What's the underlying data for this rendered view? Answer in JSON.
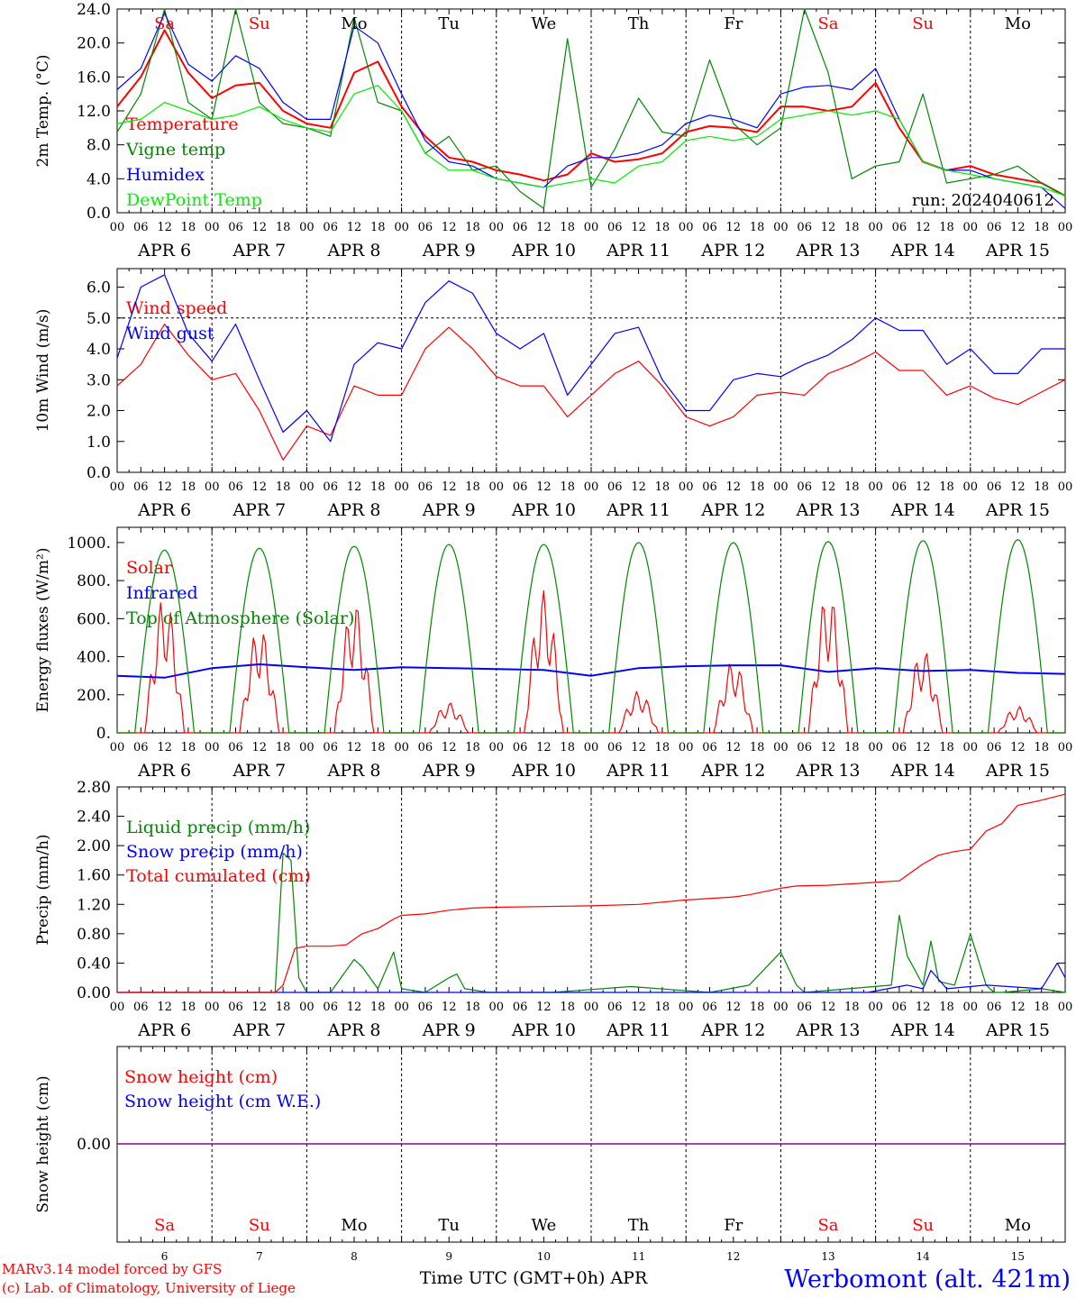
{
  "footer": {
    "model_line": "MARv3.14 model forced by GFS",
    "credit_line": "(c) Lab. of Climatology, University of Liege",
    "xaxis_title": "Time UTC (GMT+0h) APR",
    "station": "Werbomont (alt. 421m)"
  },
  "colors": {
    "red": "#ff0000",
    "green": "#008800",
    "blue": "#0000ff",
    "lightgreen": "#00ee00",
    "purple": "#800080",
    "weekend": "#ff0000",
    "weekday": "#000000"
  },
  "time_axis": {
    "hour_ticks": [
      "00",
      "06",
      "12",
      "18"
    ],
    "day_labels": [
      "APR  6",
      "APR  7",
      "APR  8",
      "APR  9",
      "APR 10",
      "APR 11",
      "APR 12",
      "APR 13",
      "APR 14",
      "APR 15"
    ],
    "weekdays": [
      "Sa",
      "Su",
      "Mo",
      "Tu",
      "We",
      "Th",
      "Fr",
      "Sa",
      "Su",
      "Mo"
    ],
    "weekend_flags": [
      true,
      true,
      false,
      false,
      false,
      false,
      false,
      true,
      true,
      false
    ],
    "bottom_day_numbers": [
      "6",
      "7",
      "8",
      "9",
      "10",
      "11",
      "12",
      "13",
      "14",
      "15"
    ]
  },
  "chart_data": [
    {
      "type": "line",
      "ylabel": "2m Temp. (°C)",
      "ylim": [
        0,
        24
      ],
      "yticks": [
        "0.0",
        "4.0",
        "8.0",
        "12.0",
        "16.0",
        "20.0",
        "24.0"
      ],
      "annotation": "run: 2024040612",
      "x_unit": "hours since APR 6 00 UTC",
      "series": [
        {
          "name": "Temperature",
          "color": "#ff0000",
          "x": [
            0,
            6,
            12,
            18,
            24,
            30,
            36,
            42,
            48,
            54,
            60,
            66,
            72,
            78,
            84,
            90,
            96,
            102,
            108,
            114,
            120,
            126,
            132,
            138,
            144,
            150,
            156,
            162,
            168,
            174,
            180,
            186,
            192,
            198,
            204,
            210,
            216,
            222,
            228,
            234,
            240
          ],
          "values": [
            12.5,
            16.0,
            21.5,
            16.5,
            13.5,
            15.0,
            15.3,
            12.0,
            10.5,
            10.0,
            16.5,
            17.8,
            12.5,
            9.0,
            6.5,
            6.0,
            5.0,
            4.5,
            3.8,
            4.5,
            7.0,
            6.0,
            6.3,
            7.0,
            9.5,
            10.2,
            10.0,
            9.5,
            12.5,
            12.5,
            12.0,
            12.5,
            15.3,
            10.0,
            6.0,
            5.0,
            5.5,
            4.5,
            4.0,
            3.5,
            2.0
          ]
        },
        {
          "name": "Vigne temp",
          "color": "#008800",
          "x": [
            0,
            6,
            12,
            18,
            24,
            30,
            36,
            42,
            48,
            54,
            60,
            66,
            72,
            78,
            84,
            90,
            96,
            102,
            108,
            114,
            120,
            126,
            132,
            138,
            144,
            150,
            156,
            162,
            168,
            174,
            180,
            186,
            192,
            198,
            204,
            210,
            216,
            222,
            228,
            234,
            240
          ],
          "values": [
            9.5,
            14.0,
            24.0,
            13.0,
            11.0,
            24.0,
            13.0,
            10.5,
            10.0,
            9.0,
            23.0,
            13.0,
            12.0,
            7.0,
            9.0,
            5.0,
            5.5,
            2.5,
            0.5,
            20.5,
            3.0,
            7.5,
            13.5,
            9.5,
            9.0,
            18.0,
            10.5,
            8.0,
            10.0,
            24.0,
            16.5,
            4.0,
            5.5,
            6.0,
            14.0,
            3.5,
            4.0,
            4.5,
            5.5,
            3.5,
            2.0
          ]
        },
        {
          "name": "Humidex",
          "color": "#0000ff",
          "x": [
            0,
            6,
            12,
            18,
            24,
            30,
            36,
            42,
            48,
            54,
            60,
            66,
            72,
            78,
            84,
            90,
            96,
            102,
            108,
            114,
            120,
            126,
            132,
            138,
            144,
            150,
            156,
            162,
            168,
            174,
            180,
            186,
            192,
            198,
            204,
            210,
            216,
            222,
            228,
            234,
            240
          ],
          "values": [
            14.5,
            17.0,
            23.5,
            17.5,
            15.5,
            18.5,
            17.0,
            13.0,
            11.0,
            11.0,
            22.0,
            20.0,
            14.0,
            8.5,
            6.0,
            5.5,
            4.0,
            3.5,
            3.0,
            5.5,
            6.5,
            6.5,
            7.0,
            8.0,
            10.5,
            11.5,
            11.0,
            10.0,
            14.0,
            14.8,
            15.0,
            14.5,
            17.0,
            11.0,
            6.0,
            5.0,
            5.0,
            4.0,
            3.5,
            3.0,
            0.5
          ]
        },
        {
          "name": "DewPoint Temp",
          "color": "#00ee00",
          "x": [
            0,
            6,
            12,
            18,
            24,
            30,
            36,
            42,
            48,
            54,
            60,
            66,
            72,
            78,
            84,
            90,
            96,
            102,
            108,
            114,
            120,
            126,
            132,
            138,
            144,
            150,
            156,
            162,
            168,
            174,
            180,
            186,
            192,
            198,
            204,
            210,
            216,
            222,
            228,
            234,
            240
          ],
          "values": [
            10.5,
            11.0,
            13.0,
            12.0,
            11.0,
            11.5,
            12.5,
            11.0,
            10.0,
            9.5,
            14.0,
            15.0,
            12.0,
            7.0,
            5.0,
            5.0,
            4.0,
            3.5,
            3.0,
            3.5,
            4.0,
            3.5,
            5.5,
            6.0,
            8.5,
            9.0,
            8.5,
            9.0,
            11.0,
            11.5,
            12.0,
            11.5,
            12.0,
            11.0,
            6.0,
            5.0,
            4.5,
            4.0,
            3.5,
            3.0,
            2.0
          ]
        }
      ]
    },
    {
      "type": "line",
      "ylabel": "10m Wind (m/s)",
      "ylim": [
        0,
        6.6
      ],
      "yticks": [
        "0.0",
        "1.0",
        "2.0",
        "3.0",
        "4.0",
        "5.0",
        "6.0"
      ],
      "reference_line": 5.0,
      "x_unit": "hours since APR 6 00 UTC",
      "series": [
        {
          "name": "Wind speed",
          "color": "#ff0000",
          "x": [
            0,
            6,
            12,
            18,
            24,
            30,
            36,
            42,
            48,
            54,
            60,
            66,
            72,
            78,
            84,
            90,
            96,
            102,
            108,
            114,
            120,
            126,
            132,
            138,
            144,
            150,
            156,
            162,
            168,
            174,
            180,
            186,
            192,
            198,
            204,
            210,
            216,
            222,
            228,
            234,
            240
          ],
          "values": [
            2.8,
            3.5,
            4.8,
            3.8,
            3.0,
            3.2,
            2.0,
            0.4,
            1.5,
            1.2,
            2.8,
            2.5,
            2.5,
            4.0,
            4.7,
            4.0,
            3.1,
            2.8,
            2.8,
            1.8,
            2.5,
            3.2,
            3.6,
            2.8,
            1.8,
            1.5,
            1.8,
            2.5,
            2.6,
            2.5,
            3.2,
            3.5,
            3.9,
            3.3,
            3.3,
            2.5,
            2.8,
            2.4,
            2.2,
            2.6,
            3.0
          ]
        },
        {
          "name": "Wind gust",
          "color": "#0000ff",
          "x": [
            0,
            6,
            12,
            18,
            24,
            30,
            36,
            42,
            48,
            54,
            60,
            66,
            72,
            78,
            84,
            90,
            96,
            102,
            108,
            114,
            120,
            126,
            132,
            138,
            144,
            150,
            156,
            162,
            168,
            174,
            180,
            186,
            192,
            198,
            204,
            210,
            216,
            222,
            228,
            234,
            240
          ],
          "values": [
            3.7,
            6.0,
            6.4,
            4.5,
            3.6,
            4.8,
            3.0,
            1.3,
            2.0,
            1.0,
            3.5,
            4.2,
            4.0,
            5.5,
            6.2,
            5.8,
            4.5,
            4.0,
            4.5,
            2.5,
            3.5,
            4.5,
            4.7,
            3.0,
            2.0,
            2.0,
            3.0,
            3.2,
            3.1,
            3.5,
            3.8,
            4.3,
            5.0,
            4.6,
            4.6,
            3.5,
            4.0,
            3.2,
            3.2,
            4.0,
            4.0
          ]
        }
      ]
    },
    {
      "type": "line",
      "ylabel": "Energy fluxes (W/m²)",
      "ylim": [
        0,
        1080
      ],
      "yticks": [
        "0.",
        "200.",
        "400.",
        "600.",
        "800.",
        "1000."
      ],
      "x_unit": "hours since APR 6 00 UTC",
      "series": [
        {
          "name": "Solar",
          "color": "#ff0000",
          "daily_peaks": [
            720,
            560,
            690,
            160,
            750,
            220,
            380,
            750,
            440,
            140
          ]
        },
        {
          "name": "Infrared",
          "color": "#0000ff",
          "x": [
            0,
            12,
            24,
            36,
            48,
            60,
            72,
            84,
            96,
            108,
            120,
            132,
            144,
            156,
            168,
            180,
            192,
            204,
            216,
            228,
            240
          ],
          "values": [
            300,
            290,
            340,
            360,
            345,
            330,
            345,
            340,
            335,
            330,
            300,
            340,
            350,
            355,
            355,
            320,
            340,
            325,
            330,
            315,
            310
          ]
        },
        {
          "name": "Top of Atmosphere (Solar)",
          "color": "#008800",
          "daily_peaks": [
            960,
            970,
            980,
            990,
            990,
            1000,
            1000,
            1005,
            1010,
            1015
          ]
        }
      ]
    },
    {
      "type": "line",
      "ylabel": "Precip (mm/h)",
      "ylim": [
        0,
        2.8
      ],
      "yticks": [
        "0.00",
        "0.40",
        "0.80",
        "1.20",
        "1.60",
        "2.00",
        "2.40",
        "2.80"
      ],
      "x_unit": "hours since APR 6 00 UTC",
      "series": [
        {
          "name": "Liquid precip (mm/h)",
          "color": "#008800",
          "x": [
            0,
            40,
            42,
            44,
            46,
            48,
            54,
            60,
            62,
            66,
            70,
            72,
            78,
            84,
            86,
            88,
            94,
            100,
            110,
            130,
            150,
            160,
            168,
            172,
            174,
            196,
            198,
            200,
            204,
            206,
            208,
            212,
            216,
            220,
            222,
            224,
            234,
            240
          ],
          "values": [
            0,
            0,
            1.9,
            1.8,
            0.2,
            0,
            0,
            0.45,
            0.35,
            0.05,
            0.55,
            0.05,
            0,
            0.2,
            0.25,
            0.05,
            0,
            0,
            0,
            0.08,
            0,
            0.1,
            0.55,
            0.1,
            0,
            0.1,
            1.05,
            0.5,
            0.1,
            0.7,
            0.15,
            0.1,
            0.8,
            0.1,
            0,
            0,
            0.05,
            0
          ]
        },
        {
          "name": "Snow precip (mm/h)",
          "color": "#0000ff",
          "x": [
            0,
            190,
            200,
            204,
            206,
            210,
            220,
            234,
            238,
            240
          ],
          "values": [
            0,
            0,
            0.1,
            0.05,
            0.3,
            0.05,
            0.1,
            0.05,
            0.4,
            0.2
          ]
        },
        {
          "name": "Total cumulated (cm)",
          "color": "#ff0000",
          "x": [
            0,
            40,
            42,
            45,
            48,
            54,
            58,
            62,
            66,
            70,
            72,
            78,
            84,
            90,
            96,
            120,
            132,
            144,
            156,
            160,
            168,
            172,
            180,
            192,
            198,
            204,
            208,
            212,
            216,
            220,
            224,
            228,
            234,
            240
          ],
          "values": [
            0,
            0,
            0.1,
            0.6,
            0.63,
            0.63,
            0.65,
            0.8,
            0.87,
            1.0,
            1.05,
            1.07,
            1.12,
            1.15,
            1.16,
            1.18,
            1.2,
            1.26,
            1.3,
            1.33,
            1.42,
            1.45,
            1.46,
            1.5,
            1.52,
            1.75,
            1.87,
            1.92,
            1.95,
            2.2,
            2.3,
            2.55,
            2.62,
            2.7
          ]
        }
      ]
    },
    {
      "type": "line",
      "ylabel": "Snow height (cm)",
      "yticks": [
        "0.00"
      ],
      "x_unit": "hours since APR 6 00 UTC",
      "series": [
        {
          "name": "Snow height (cm)",
          "color": "#ff0000",
          "x": [
            0,
            240
          ],
          "values": [
            0,
            0
          ]
        },
        {
          "name": "Snow height (cm W.E.)",
          "color": "#0000ff",
          "x": [
            0,
            240
          ],
          "values": [
            0,
            0
          ]
        }
      ]
    }
  ]
}
